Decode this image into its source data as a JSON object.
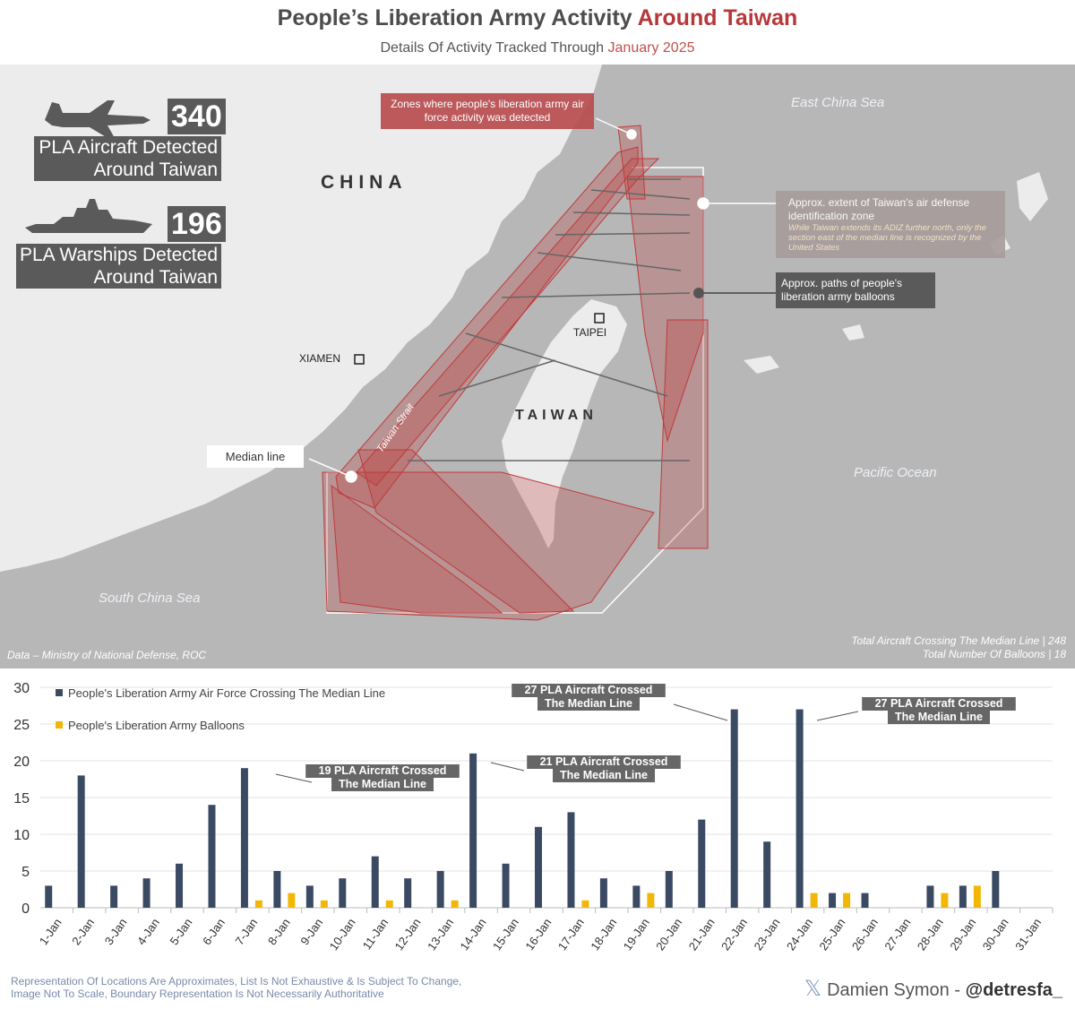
{
  "header": {
    "title_main": "People’s Liberation Army Activity",
    "title_accent": "Around Taiwan",
    "subtitle_main": "Details Of Activity Tracked Through",
    "subtitle_accent": "January 2025"
  },
  "map": {
    "aircraft_count": "340",
    "aircraft_label_1": "PLA Aircraft Detected",
    "aircraft_label_2": "Around Taiwan",
    "warship_count": "196",
    "warship_label_1": "PLA Warships Detected",
    "warship_label_2": "Around Taiwan",
    "china": "CHINA",
    "taiwan": "TAIWAN",
    "xiamen": "XIAMEN",
    "taipei": "TAIPEI",
    "east_china_sea": "East China Sea",
    "south_china_sea": "South China Sea",
    "pacific_ocean": "Pacific Ocean",
    "taiwan_strait": "Taiwan Strait",
    "median_line": "Median line",
    "zones_callout": "Zones where people's liberation army air force activity was detected",
    "adiz_callout_title": "Approx. extent of Taiwan's air defense identification zone",
    "adiz_callout_note": "While Taiwan extends its ADIZ further north, only the section east of the median line is recognized by the United States",
    "balloon_callout": "Approx. paths of people's liberation army balloons",
    "source": "Data – Ministry of National Defense, ROC",
    "total_crossing": "Total Aircraft Crossing The Median Line | 248",
    "total_balloons": "Total Number Of Balloons | 18",
    "colors": {
      "land": "#ececec",
      "sea": "#b7b7b7",
      "activity": "#c0393b",
      "box": "#5a5a5a"
    },
    "icons": [
      "fighter-jet-icon",
      "warship-icon"
    ]
  },
  "chart_data": {
    "type": "bar",
    "categories": [
      "1-Jan",
      "2-Jan",
      "3-Jan",
      "4-Jan",
      "5-Jan",
      "6-Jan",
      "7-Jan",
      "8-Jan",
      "9-Jan",
      "10-Jan",
      "11-Jan",
      "12-Jan",
      "13-Jan",
      "14-Jan",
      "15-Jan",
      "16-Jan",
      "17-Jan",
      "18-Jan",
      "19-Jan",
      "20-Jan",
      "21-Jan",
      "22-Jan",
      "23-Jan",
      "24-Jan",
      "25-Jan",
      "26-Jan",
      "27-Jan",
      "28-Jan",
      "29-Jan",
      "30-Jan",
      "31-Jan"
    ],
    "series": [
      {
        "name": "People's Liberation Army Air Force Crossing The Median Line",
        "color": "#3b4a63",
        "values": [
          3,
          18,
          3,
          4,
          6,
          14,
          19,
          5,
          3,
          4,
          7,
          4,
          5,
          21,
          6,
          11,
          13,
          4,
          3,
          5,
          12,
          27,
          9,
          27,
          2,
          2,
          0,
          3,
          3,
          5,
          0
        ]
      },
      {
        "name": "People's Liberation Army Balloons",
        "color": "#f2b705",
        "values": [
          0,
          0,
          0,
          0,
          0,
          0,
          1,
          2,
          1,
          0,
          1,
          0,
          1,
          0,
          0,
          0,
          1,
          0,
          2,
          0,
          0,
          0,
          0,
          2,
          2,
          0,
          0,
          2,
          3,
          0,
          0
        ]
      }
    ],
    "ylim": [
      0,
      30
    ],
    "yticks": [
      0,
      5,
      10,
      15,
      20,
      25,
      30
    ],
    "grid": true,
    "legend": "top-left",
    "annotations": [
      {
        "text_1": "19 PLA Aircraft Crossed",
        "text_2": "The Median Line",
        "day": "7-Jan"
      },
      {
        "text_1": "21 PLA Aircraft Crossed",
        "text_2": "The Median Line",
        "day": "14-Jan"
      },
      {
        "text_1": "27 PLA Aircraft Crossed",
        "text_2": "The Median Line",
        "day": "22-Jan"
      },
      {
        "text_1": "27 PLA Aircraft Crossed",
        "text_2": "The Median Line",
        "day": "24-Jan"
      }
    ]
  },
  "footer": {
    "note_1": "Representation Of Locations Are Approximates, List Is Not Exhaustive & Is Subject To Change,",
    "note_2": "Image Not To Scale, Boundary Representation Is Not Necessarily Authoritative",
    "x_icon": "𝕏",
    "author": "Damien Symon - ",
    "handle": "@detresfa_"
  }
}
